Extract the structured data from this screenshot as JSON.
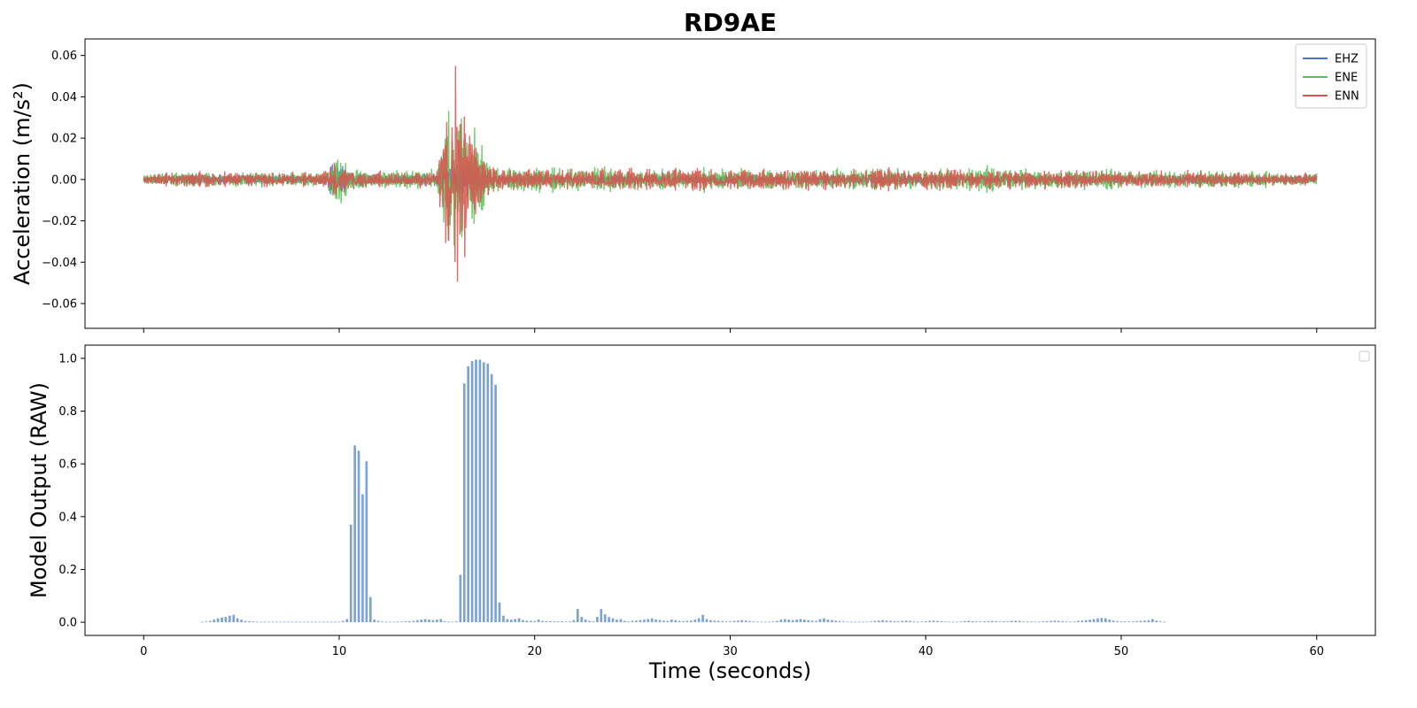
{
  "chart_data": [
    {
      "type": "line",
      "title": "RD9AE",
      "ylabel": "Acceleration (m/s²)",
      "xlabel": "",
      "xlim": [
        -3,
        63
      ],
      "ylim": [
        -0.072,
        0.068
      ],
      "x_ticks": [
        0,
        10,
        20,
        30,
        40,
        50,
        60
      ],
      "y_ticks": [
        -0.06,
        -0.04,
        -0.02,
        0.0,
        0.02,
        0.04,
        0.06
      ],
      "y_tick_labels": [
        "−0.06",
        "−0.04",
        "−0.02",
        "0.00",
        "0.02",
        "0.04",
        "0.06"
      ],
      "x_tick_labels_shown": false,
      "grid": false,
      "legend_position": "top-right",
      "series": [
        {
          "name": "EHZ",
          "color": "#4c72d0",
          "envelope_x": [
            0,
            2,
            5,
            9.2,
            9.4,
            9.8,
            10.5,
            12,
            15,
            15.5,
            16,
            16.5,
            17,
            18,
            20,
            25,
            30,
            40,
            50,
            60
          ],
          "envelope_amp": [
            0.002,
            0.003,
            0.003,
            0.003,
            0.015,
            0.012,
            0.006,
            0.003,
            0.004,
            0.01,
            0.012,
            0.01,
            0.006,
            0.004,
            0.003,
            0.003,
            0.003,
            0.003,
            0.003,
            0.002
          ]
        },
        {
          "name": "ENE",
          "color": "#55c255",
          "envelope_x": [
            0,
            2,
            5,
            9.2,
            9.6,
            10,
            10.5,
            12,
            15,
            15.5,
            15.9,
            16.1,
            16.5,
            17,
            17.5,
            18,
            20,
            25,
            30,
            40,
            50,
            60
          ],
          "envelope_amp": [
            0.003,
            0.005,
            0.005,
            0.005,
            0.012,
            0.017,
            0.008,
            0.006,
            0.007,
            0.045,
            0.062,
            0.062,
            0.045,
            0.028,
            0.015,
            0.01,
            0.008,
            0.008,
            0.007,
            0.008,
            0.007,
            0.004
          ]
        },
        {
          "name": "ENN",
          "color": "#d9534f",
          "envelope_x": [
            0,
            2,
            5,
            9.2,
            9.6,
            10,
            10.5,
            12,
            15,
            15.5,
            15.9,
            16.1,
            16.5,
            17,
            17.5,
            18,
            20,
            25,
            30,
            40,
            50,
            60
          ],
          "envelope_amp": [
            0.003,
            0.005,
            0.005,
            0.005,
            0.01,
            0.012,
            0.007,
            0.005,
            0.006,
            0.05,
            0.07,
            0.07,
            0.045,
            0.022,
            0.012,
            0.008,
            0.007,
            0.007,
            0.007,
            0.007,
            0.006,
            0.004
          ]
        }
      ]
    },
    {
      "type": "bar",
      "title": "",
      "xlabel": "Time (seconds)",
      "ylabel": "Model Output (RAW)",
      "xlim": [
        -3,
        63
      ],
      "ylim": [
        -0.05,
        1.05
      ],
      "x_ticks": [
        0,
        10,
        20,
        30,
        40,
        50,
        60
      ],
      "x_tick_labels": [
        "0",
        "10",
        "20",
        "30",
        "40",
        "50",
        "60"
      ],
      "y_ticks": [
        0.0,
        0.2,
        0.4,
        0.6,
        0.8,
        1.0
      ],
      "y_tick_labels": [
        "0.0",
        "0.2",
        "0.4",
        "0.6",
        "0.8",
        "1.0"
      ],
      "grid": false,
      "legend_position": "top-right",
      "bar_color": "#7ba3d4",
      "bar_start": 3.0,
      "bar_step": 0.2,
      "values": [
        0.002,
        0.003,
        0.005,
        0.01,
        0.015,
        0.018,
        0.02,
        0.025,
        0.028,
        0.015,
        0.01,
        0.005,
        0.004,
        0.003,
        0.002,
        0.002,
        0.002,
        0.002,
        0.002,
        0.002,
        0.002,
        0.002,
        0.002,
        0.002,
        0.002,
        0.002,
        0.002,
        0.002,
        0.002,
        0.002,
        0.002,
        0.002,
        0.002,
        0.002,
        0.002,
        0.002,
        0.005,
        0.012,
        0.37,
        0.67,
        0.65,
        0.485,
        0.61,
        0.095,
        0.01,
        0.005,
        0.003,
        0.002,
        0.002,
        0.002,
        0.002,
        0.003,
        0.003,
        0.004,
        0.005,
        0.008,
        0.01,
        0.012,
        0.01,
        0.008,
        0.01,
        0.012,
        0.003,
        0.002,
        0.002,
        0.003,
        0.18,
        0.905,
        0.97,
        0.99,
        0.995,
        0.995,
        0.985,
        0.98,
        0.94,
        0.9,
        0.075,
        0.025,
        0.012,
        0.01,
        0.012,
        0.015,
        0.008,
        0.006,
        0.005,
        0.004,
        0.01,
        0.005,
        0.004,
        0.004,
        0.003,
        0.003,
        0.003,
        0.003,
        0.003,
        0.008,
        0.05,
        0.02,
        0.01,
        0.005,
        0.003,
        0.02,
        0.05,
        0.03,
        0.02,
        0.015,
        0.01,
        0.012,
        0.005,
        0.003,
        0.005,
        0.006,
        0.008,
        0.01,
        0.012,
        0.015,
        0.01,
        0.008,
        0.006,
        0.005,
        0.01,
        0.008,
        0.005,
        0.004,
        0.005,
        0.006,
        0.01,
        0.015,
        0.028,
        0.012,
        0.008,
        0.006,
        0.005,
        0.004,
        0.003,
        0.003,
        0.005,
        0.006,
        0.008,
        0.006,
        0.004,
        0.003,
        0.002,
        0.002,
        0.002,
        0.002,
        0.003,
        0.005,
        0.01,
        0.012,
        0.01,
        0.008,
        0.01,
        0.012,
        0.01,
        0.008,
        0.006,
        0.005,
        0.012,
        0.015,
        0.01,
        0.008,
        0.006,
        0.004,
        0.003,
        0.002,
        0.002,
        0.002,
        0.002,
        0.002,
        0.002,
        0.003,
        0.005,
        0.006,
        0.008,
        0.006,
        0.005,
        0.004,
        0.003,
        0.005,
        0.006,
        0.005,
        0.003,
        0.002,
        0.003,
        0.004,
        0.005,
        0.006,
        0.005,
        0.004,
        0.003,
        0.002,
        0.002,
        0.002,
        0.003,
        0.004,
        0.005,
        0.004,
        0.003,
        0.003,
        0.003,
        0.004,
        0.005,
        0.004,
        0.003,
        0.003,
        0.003,
        0.005,
        0.006,
        0.005,
        0.003,
        0.003,
        0.003,
        0.002,
        0.002,
        0.003,
        0.004,
        0.005,
        0.006,
        0.005,
        0.004,
        0.003,
        0.002,
        0.003,
        0.005,
        0.006,
        0.008,
        0.01,
        0.012,
        0.015,
        0.016,
        0.015,
        0.01,
        0.006,
        0.004,
        0.003,
        0.003,
        0.003,
        0.003,
        0.004,
        0.005,
        0.006,
        0.008,
        0.012,
        0.006,
        0.003,
        0.002
      ]
    }
  ]
}
